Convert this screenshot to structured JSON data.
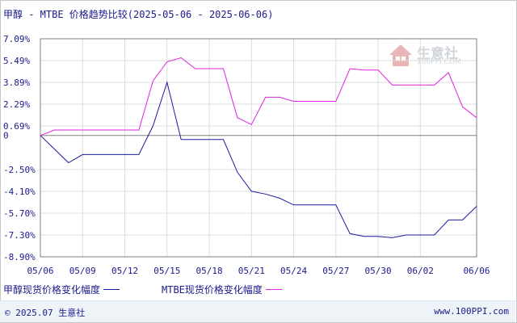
{
  "title": "甲醇 - MTBE 价格趋势比较(2025-05-06 - 2025-06-06)",
  "footer": {
    "copyright": "© 2025.07 生意社",
    "url": "www.100PPI.com"
  },
  "watermark": {
    "name": "生意社",
    "url": "100PPI.COM"
  },
  "colors": {
    "series_0": "#1a1aa0",
    "series_1": "#e020e0",
    "grid": "#dddddd",
    "axis": "#808080",
    "text": "#1a1a8c"
  },
  "chart_data": {
    "type": "line",
    "title": "甲醇 - MTBE 价格趋势比较(2025-05-06 - 2025-06-06)",
    "xlabel": "",
    "ylabel": "",
    "x_ticks": [
      "05/06",
      "05/09",
      "05/12",
      "05/15",
      "05/18",
      "05/21",
      "05/24",
      "05/27",
      "05/30",
      "06/02",
      "06/06"
    ],
    "y_ticks": [
      "7.09%",
      "5.49%",
      "3.89%",
      "2.29%",
      "0.69%",
      "0",
      "-2.50%",
      "-4.10%",
      "-5.70%",
      "-7.30%",
      "-8.90%"
    ],
    "ylim": [
      -8.9,
      7.09
    ],
    "grid": true,
    "legend_position": "bottom",
    "x": [
      "05/06",
      "05/07",
      "05/08",
      "05/09",
      "05/10",
      "05/11",
      "05/12",
      "05/13",
      "05/14",
      "05/15",
      "05/16",
      "05/17",
      "05/18",
      "05/19",
      "05/20",
      "05/21",
      "05/22",
      "05/23",
      "05/24",
      "05/25",
      "05/26",
      "05/27",
      "05/28",
      "05/29",
      "05/30",
      "05/31",
      "06/01",
      "06/02",
      "06/03",
      "06/04",
      "06/05",
      "06/06"
    ],
    "series": [
      {
        "name": "甲醇现货价格变化幅度",
        "values": [
          0.0,
          -1.0,
          -2.0,
          -1.4,
          -1.4,
          -1.4,
          -1.4,
          -1.4,
          0.7,
          3.89,
          -0.3,
          -0.3,
          -0.3,
          -0.3,
          -2.7,
          -4.1,
          -4.3,
          -4.6,
          -5.1,
          -5.1,
          -5.1,
          -5.1,
          -7.2,
          -7.4,
          -7.4,
          -7.5,
          -7.3,
          -7.3,
          -7.3,
          -6.2,
          -6.2,
          -5.2
        ]
      },
      {
        "name": "MTBE现货价格变化幅度",
        "values": [
          0.0,
          0.4,
          0.4,
          0.4,
          0.4,
          0.4,
          0.4,
          0.4,
          4.0,
          5.4,
          5.7,
          4.9,
          4.9,
          4.9,
          1.3,
          0.8,
          2.8,
          2.8,
          2.5,
          2.5,
          2.5,
          2.5,
          4.9,
          4.8,
          4.8,
          3.7,
          3.7,
          3.7,
          3.7,
          4.6,
          2.1,
          1.3
        ]
      }
    ]
  }
}
